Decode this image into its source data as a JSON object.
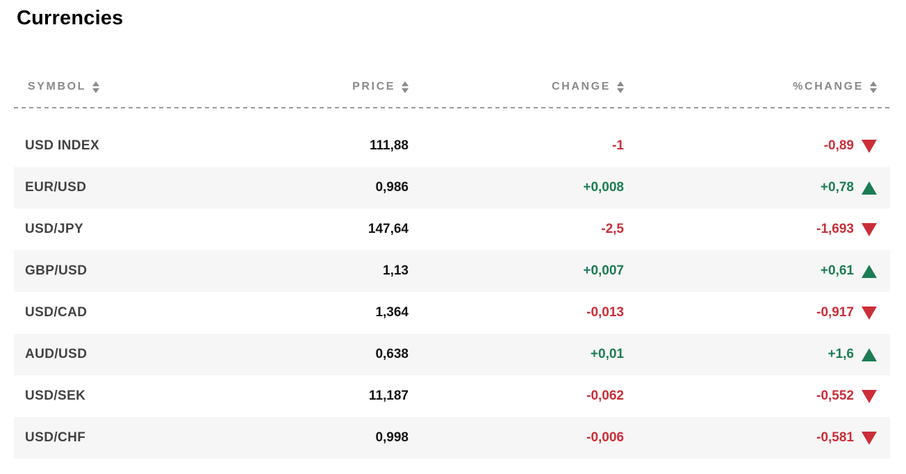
{
  "page": {
    "title": "Currencies"
  },
  "table": {
    "columns": [
      {
        "key": "symbol",
        "label": "SYMBOL",
        "sortable": true,
        "align": "left",
        "sort_icon": "sort-arrows-icon"
      },
      {
        "key": "price",
        "label": "PRICE",
        "sortable": true,
        "align": "right",
        "sort_icon": "sort-arrows-icon"
      },
      {
        "key": "change",
        "label": "CHANGE",
        "sortable": true,
        "align": "right",
        "sort_icon": "sort-arrows-icon"
      },
      {
        "key": "pct_change",
        "label": "%CHANGE",
        "sortable": true,
        "align": "right",
        "sort_icon": "sort-arrows-icon"
      }
    ],
    "rows": [
      {
        "symbol": "USD INDEX",
        "price": "111,88",
        "change": "-1",
        "pct_change": "-0,89",
        "direction": "down"
      },
      {
        "symbol": "EUR/USD",
        "price": "0,986",
        "change": "+0,008",
        "pct_change": "+0,78",
        "direction": "up"
      },
      {
        "symbol": "USD/JPY",
        "price": "147,64",
        "change": "-2,5",
        "pct_change": "-1,693",
        "direction": "down"
      },
      {
        "symbol": "GBP/USD",
        "price": "1,13",
        "change": "+0,007",
        "pct_change": "+0,61",
        "direction": "up"
      },
      {
        "symbol": "USD/CAD",
        "price": "1,364",
        "change": "-0,013",
        "pct_change": "-0,917",
        "direction": "down"
      },
      {
        "symbol": "AUD/USD",
        "price": "0,638",
        "change": "+0,01",
        "pct_change": "+1,6",
        "direction": "up"
      },
      {
        "symbol": "USD/SEK",
        "price": "11,187",
        "change": "-0,062",
        "pct_change": "-0,552",
        "direction": "down"
      },
      {
        "symbol": "USD/CHF",
        "price": "0,998",
        "change": "-0,006",
        "pct_change": "-0,581",
        "direction": "down"
      }
    ],
    "icons": {
      "up": "triangle-up-icon",
      "down": "triangle-down-icon"
    },
    "colors": {
      "up": "#1c7c54",
      "down": "#cb2e39",
      "symbol_text": "#424242",
      "price_text": "#141414",
      "header_text": "#8a8a8a",
      "row_alt_bg": "#f6f6f6"
    }
  }
}
